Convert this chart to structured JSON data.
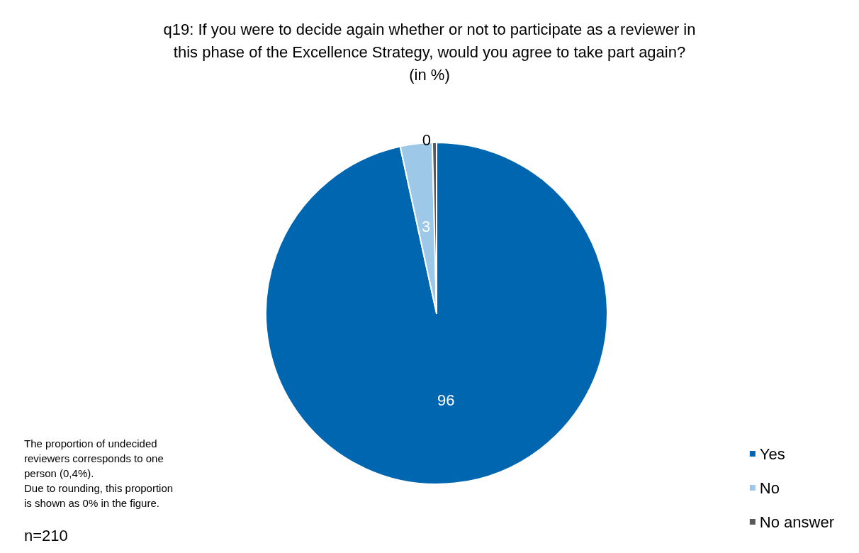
{
  "chart_data": {
    "type": "pie",
    "title": "q19: If you were to decide again whether or not to participate as a reviewer in\nthis phase of the Excellence Strategy, would you agree to take part again?\n(in %)",
    "categories": [
      "Yes",
      "No",
      "No answer"
    ],
    "values": [
      96,
      3,
      0.4
    ],
    "value_labels": [
      "96",
      "3",
      "0"
    ],
    "colors": [
      "#0066b0",
      "#9dc8e8",
      "#595959"
    ],
    "legend": "bottom right",
    "annotations": [
      "The proportion of undecided\nreviewers corresponds to one\nperson (0,4%).\nDue to rounding, this proportion\nis shown as 0% in the figure.",
      "n=210"
    ]
  }
}
